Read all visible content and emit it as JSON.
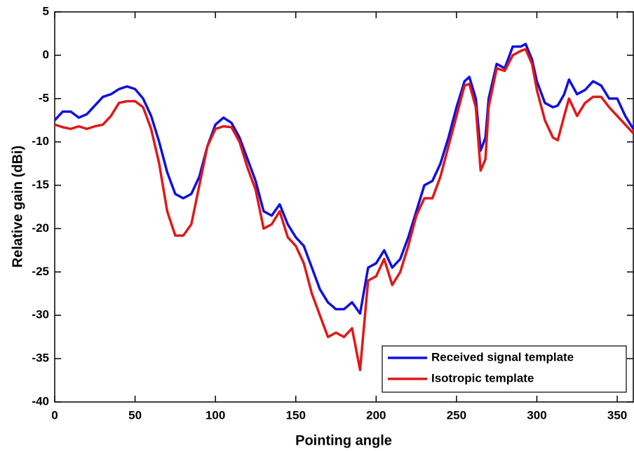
{
  "chart_data": {
    "type": "line",
    "xlabel": "Pointing angle",
    "ylabel": "Relative gain (dBi)",
    "xlim": [
      0,
      360
    ],
    "ylim": [
      -40,
      5
    ],
    "xticks": [
      0,
      50,
      100,
      150,
      200,
      250,
      300,
      350
    ],
    "yticks": [
      -40,
      -35,
      -30,
      -25,
      -20,
      -15,
      -10,
      -5,
      0,
      5
    ],
    "legend": "lower right",
    "x": [
      0,
      5,
      10,
      15,
      20,
      25,
      30,
      35,
      40,
      45,
      50,
      55,
      60,
      65,
      70,
      75,
      80,
      85,
      90,
      95,
      100,
      105,
      110,
      115,
      120,
      125,
      130,
      135,
      140,
      145,
      150,
      155,
      160,
      165,
      170,
      175,
      180,
      185,
      190,
      195,
      200,
      205,
      210,
      215,
      220,
      225,
      230,
      235,
      240,
      245,
      250,
      255,
      258,
      262,
      265,
      268,
      270,
      275,
      280,
      285,
      290,
      293,
      297,
      300,
      305,
      310,
      313,
      317,
      320,
      325,
      330,
      335,
      340,
      345,
      350,
      355,
      360
    ],
    "series": [
      {
        "name": "Received signal template",
        "color": "#1010e0",
        "values": [
          -7.5,
          -6.5,
          -6.5,
          -7.2,
          -6.8,
          -5.8,
          -4.8,
          -4.5,
          -3.9,
          -3.6,
          -3.9,
          -5,
          -7,
          -10,
          -13.5,
          -16,
          -16.5,
          -16,
          -14,
          -10.5,
          -8,
          -7.2,
          -7.8,
          -9.5,
          -12,
          -14.5,
          -18,
          -18.5,
          -17.2,
          -19.5,
          -21,
          -22,
          -24.5,
          -27,
          -28.5,
          -29.3,
          -29.3,
          -28.5,
          -29.8,
          -24.5,
          -24,
          -22.5,
          -24.5,
          -23.5,
          -21,
          -18,
          -15,
          -14.5,
          -12.5,
          -9.5,
          -6,
          -3,
          -2.5,
          -5,
          -11,
          -9.5,
          -5,
          -1,
          -1.5,
          1,
          1,
          1.3,
          -0.5,
          -3,
          -5.5,
          -6,
          -5.8,
          -4.5,
          -2.8,
          -4.5,
          -4,
          -3,
          -3.5,
          -5,
          -5,
          -7,
          -8.5
        ]
      },
      {
        "name": "Isotropic template",
        "color": "#e01818",
        "values": [
          -8,
          -8.3,
          -8.5,
          -8.2,
          -8.5,
          -8.2,
          -8,
          -7,
          -5.5,
          -5.3,
          -5.3,
          -6,
          -8.5,
          -12.5,
          -18,
          -20.8,
          -20.8,
          -19.5,
          -15,
          -10.5,
          -8.5,
          -8.2,
          -8.3,
          -10,
          -13,
          -15.5,
          -20,
          -19.5,
          -18,
          -21,
          -22,
          -24,
          -27.5,
          -30,
          -32.5,
          -32,
          -32.5,
          -31.5,
          -36.3,
          -26,
          -25.5,
          -23.5,
          -26.5,
          -25,
          -22,
          -18.5,
          -16.5,
          -16.5,
          -14,
          -10.5,
          -7,
          -3.5,
          -3.3,
          -6,
          -13.3,
          -12,
          -6,
          -1.5,
          -1.8,
          0,
          0.5,
          0.7,
          -1,
          -4,
          -7.5,
          -9.5,
          -9.8,
          -7,
          -5,
          -7,
          -5.5,
          -4.8,
          -4.8,
          -6,
          -7,
          -8,
          -9
        ]
      }
    ]
  }
}
